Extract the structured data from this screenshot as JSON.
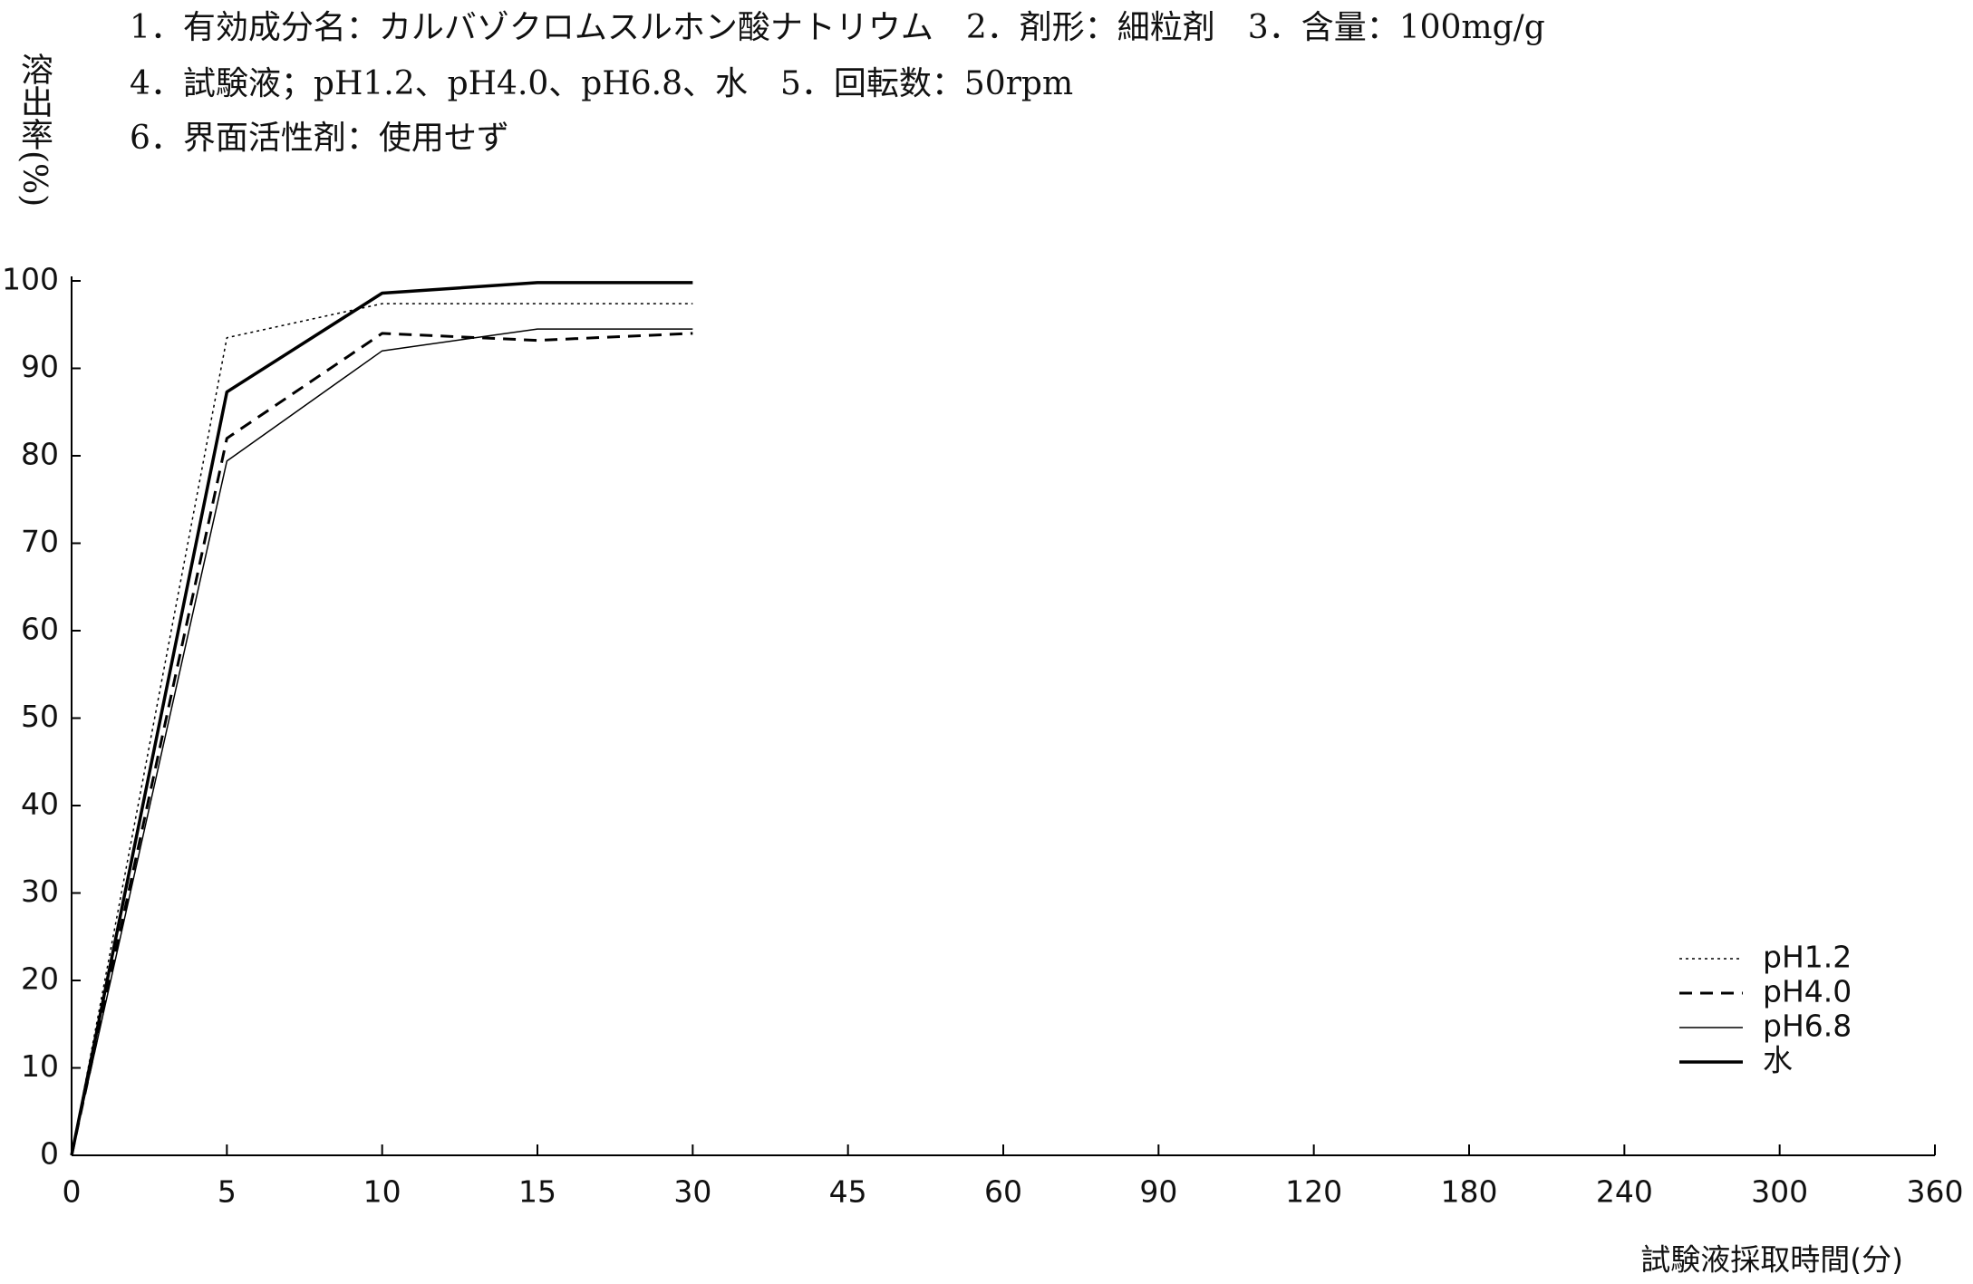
{
  "chart_data": {
    "type": "line",
    "header_lines": [
      "1．有効成分名：カルバゾクロムスルホン酸ナトリウム　2．剤形：細粒剤　3．含量：100mg/g",
      "4．試験液；pH1.2、pH4.0、pH6.8、水　5．回転数：50rpm",
      "6．界面活性剤：使用せず"
    ],
    "ylabel": "溶出率(%)",
    "xlabel": "試験液採取時間(分)",
    "categories": [
      "0",
      "5",
      "10",
      "15",
      "30",
      "45",
      "60",
      "90",
      "120",
      "180",
      "240",
      "300",
      "360"
    ],
    "series": [
      {
        "name": "pH1.2",
        "color": "#000000",
        "style": "dotted",
        "values": [
          0,
          93.5,
          97.4,
          97.4,
          97.4,
          null,
          null,
          null,
          null,
          null,
          null,
          null,
          null
        ]
      },
      {
        "name": "pH4.0",
        "color": "#000000",
        "style": "dashed",
        "values": [
          0,
          82,
          94,
          93.2,
          94,
          null,
          null,
          null,
          null,
          null,
          null,
          null,
          null
        ]
      },
      {
        "name": "pH6.8",
        "color": "#000000",
        "style": "thin",
        "values": [
          0,
          79.4,
          92,
          94.5,
          94.5,
          null,
          null,
          null,
          null,
          null,
          null,
          null,
          null
        ]
      },
      {
        "name": "水",
        "color": "#000000",
        "style": "thick",
        "values": [
          0,
          87.3,
          98.6,
          99.8,
          99.8,
          null,
          null,
          null,
          null,
          null,
          null,
          null,
          null
        ]
      }
    ],
    "ylim": [
      0,
      100
    ],
    "yticks": [
      0,
      10,
      20,
      30,
      40,
      50,
      60,
      70,
      80,
      90,
      100
    ],
    "legend": "lower right"
  }
}
